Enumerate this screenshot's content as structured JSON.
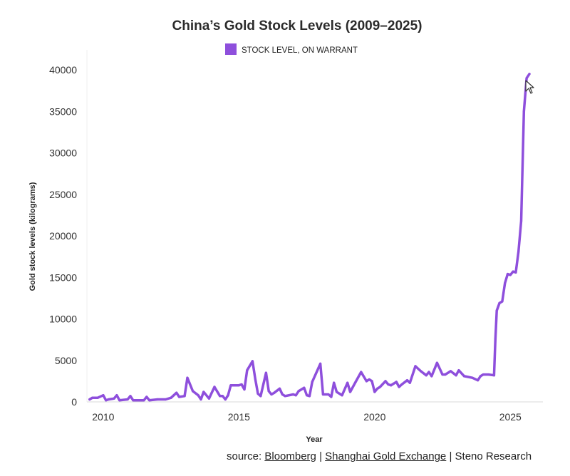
{
  "chart_data": {
    "type": "line",
    "title": "China’s Gold Stock Levels (2009–2025)",
    "xlabel": "Year",
    "ylabel": "Gold stock levels (kilograms)",
    "xlim": [
      2009.4,
      2026.2
    ],
    "ylim": [
      0,
      40000
    ],
    "x_ticks": [
      "2010",
      "2015",
      "2020",
      "2025"
    ],
    "y_ticks": [
      "0",
      "5000",
      "10000",
      "15000",
      "20000",
      "25000",
      "30000",
      "35000",
      "40000"
    ],
    "grid": false,
    "legend": "top-center",
    "color": "#8e4fdc",
    "series": [
      {
        "name": "STOCK LEVEL, ON WARRANT",
        "x": [
          2009.5,
          2009.6,
          2009.8,
          2010.0,
          2010.1,
          2010.2,
          2010.4,
          2010.5,
          2010.6,
          2010.9,
          2011.0,
          2011.1,
          2011.3,
          2011.5,
          2011.6,
          2011.7,
          2012.0,
          2012.3,
          2012.5,
          2012.6,
          2012.7,
          2012.8,
          2013.0,
          2013.1,
          2013.3,
          2013.5,
          2013.6,
          2013.7,
          2013.9,
          2014.1,
          2014.3,
          2014.4,
          2014.5,
          2014.6,
          2014.7,
          2015.0,
          2015.1,
          2015.2,
          2015.3,
          2015.5,
          2015.6,
          2015.7,
          2015.8,
          2016.0,
          2016.1,
          2016.2,
          2016.3,
          2016.5,
          2016.6,
          2016.7,
          2017.0,
          2017.1,
          2017.2,
          2017.4,
          2017.5,
          2017.6,
          2017.7,
          2018.0,
          2018.1,
          2018.3,
          2018.4,
          2018.5,
          2018.6,
          2018.8,
          2019.0,
          2019.1,
          2019.3,
          2019.5,
          2019.7,
          2019.8,
          2019.9,
          2020.0,
          2020.1,
          2020.2,
          2020.4,
          2020.5,
          2020.6,
          2020.8,
          2020.9,
          2021.0,
          2021.2,
          2021.3,
          2021.5,
          2021.7,
          2021.9,
          2022.0,
          2022.1,
          2022.3,
          2022.5,
          2022.6,
          2022.8,
          2023.0,
          2023.1,
          2023.3,
          2023.6,
          2023.8,
          2023.9,
          2024.0,
          2024.2,
          2024.4,
          2024.45,
          2024.5,
          2024.6,
          2024.7,
          2024.8,
          2024.9,
          2025.0,
          2025.1,
          2025.2,
          2025.3,
          2025.4,
          2025.5,
          2025.55,
          2025.6,
          2025.7
        ],
        "values": [
          300,
          500,
          500,
          800,
          200,
          300,
          400,
          800,
          200,
          300,
          700,
          200,
          200,
          200,
          600,
          200,
          300,
          300,
          500,
          800,
          1100,
          600,
          700,
          2900,
          1300,
          800,
          300,
          1200,
          400,
          1800,
          700,
          700,
          300,
          800,
          2000,
          2000,
          2100,
          1500,
          3800,
          4900,
          2800,
          1000,
          700,
          3500,
          1300,
          900,
          1100,
          1600,
          900,
          700,
          900,
          800,
          1300,
          1700,
          800,
          700,
          2400,
          4600,
          900,
          900,
          600,
          2300,
          1200,
          800,
          2300,
          1200,
          2400,
          3600,
          2500,
          2700,
          2500,
          1200,
          1600,
          1800,
          2500,
          2100,
          2000,
          2400,
          1800,
          2100,
          2600,
          2300,
          4300,
          3700,
          3200,
          3600,
          3100,
          4700,
          3300,
          3300,
          3700,
          3200,
          3800,
          3100,
          2900,
          2600,
          3100,
          3300,
          3300,
          3200,
          7600,
          11000,
          11900,
          12100,
          14300,
          15400,
          15300,
          15700,
          15600,
          18100,
          21800,
          35000,
          37000,
          39000,
          39500
        ]
      }
    ]
  },
  "source": {
    "prefix": "source: ",
    "parts": [
      "Bloomberg",
      "Shanghai Gold Exchange",
      "Steno Research"
    ],
    "separator": " | "
  },
  "icons": {
    "cursor": "mouse-pointer-icon"
  }
}
